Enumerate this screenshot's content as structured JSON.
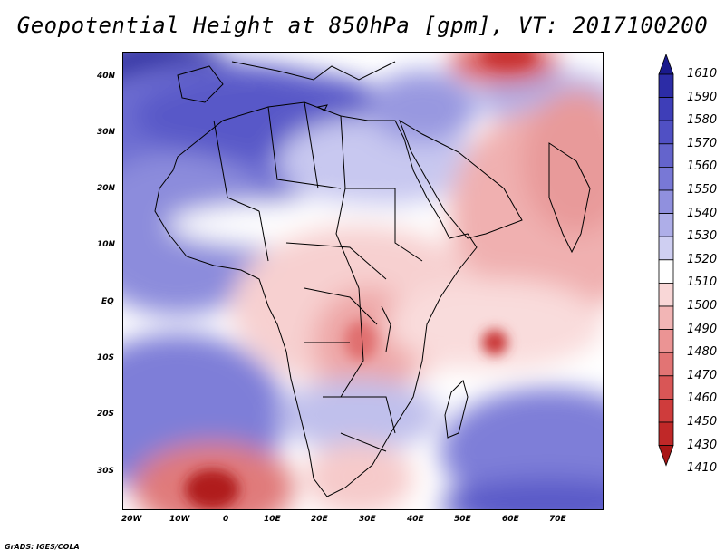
{
  "title": "Geopotential Height at 850hPa [gpm], VT: 2017100200",
  "footer": "GrADS: IGES/COLA",
  "lat_ticks": [
    "40N",
    "30N",
    "20N",
    "10N",
    "EQ",
    "10S",
    "20S",
    "30S"
  ],
  "lon_ticks": [
    "20W",
    "10W",
    "0",
    "10E",
    "20E",
    "30E",
    "40E",
    "50E",
    "60E",
    "70E"
  ],
  "colorbar": {
    "labels": [
      "1610",
      "1590",
      "1580",
      "1570",
      "1560",
      "1550",
      "1540",
      "1530",
      "1520",
      "1510",
      "1500",
      "1490",
      "1480",
      "1470",
      "1460",
      "1450",
      "1430",
      "1410"
    ],
    "colors": [
      "#1a1a8c",
      "#2c2ca6",
      "#3e3eb8",
      "#5050c4",
      "#6464cc",
      "#7878d6",
      "#9090de",
      "#aeaee8",
      "#cfcff2",
      "#ffffff",
      "#f9d7d7",
      "#f2b5b5",
      "#eb9494",
      "#e27474",
      "#d95656",
      "#cf3c3c",
      "#c02828",
      "#a81616"
    ]
  }
}
